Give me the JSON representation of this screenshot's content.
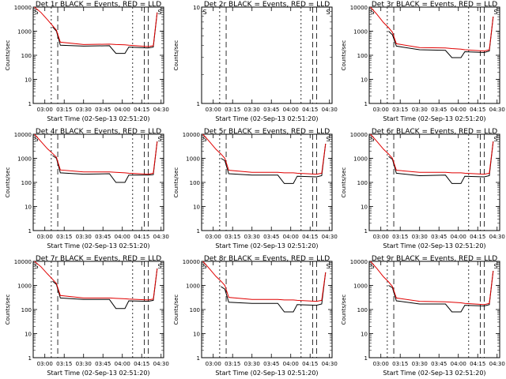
{
  "chart_data": [
    {
      "type": "line",
      "title": "Det 1r BLACK = Events, RED = LLD",
      "xlabel": "Start Time (02-Sep-13 02:51:20)",
      "ylabel": "Counts/sec",
      "xticks": [
        "03:00",
        "03:15",
        "03:30",
        "03:45",
        "04:00",
        "04:15",
        "04:30"
      ],
      "yticks": [
        "1",
        "10",
        "100",
        "1000",
        "10000"
      ],
      "ylim": [
        1,
        10000
      ],
      "yscale": "log",
      "markers": [
        "S",
        "S"
      ],
      "series_colors": {
        "events": "#000000",
        "lld": "#e00000"
      },
      "series": [
        {
          "name": "BLACK = Events",
          "x": [
            "02:52",
            "02:57",
            "03:02",
            "03:06",
            "03:09",
            "03:12",
            "03:30",
            "03:50",
            "03:55",
            "04:02",
            "04:05",
            "04:20",
            "04:24",
            "04:27"
          ],
          "values": [
            null,
            null,
            null,
            1500,
            1000,
            260,
            240,
            250,
            120,
            120,
            220,
            200,
            220,
            6000
          ]
        },
        {
          "name": "RED = LLD",
          "x": [
            "02:52",
            "02:57",
            "03:02",
            "03:06",
            "03:09",
            "03:12",
            "03:30",
            "03:50",
            "03:55",
            "04:02",
            "04:05",
            "04:20",
            "04:24",
            "04:27"
          ],
          "values": [
            12000,
            6000,
            3000,
            1700,
            1100,
            350,
            280,
            290,
            280,
            270,
            260,
            230,
            250,
            6000
          ]
        }
      ]
    },
    {
      "type": "line",
      "title": "Det 2r BLACK = Events, RED = LLD",
      "xlabel": "Start Time (02-Sep-13 02:51:20)",
      "ylabel": "Counts/sec",
      "xticks": [
        "03:00",
        "03:15",
        "03:30",
        "03:45",
        "04:00",
        "04:15",
        "04:30"
      ],
      "yticks": [
        "1",
        "10"
      ],
      "ylim": [
        1,
        10
      ],
      "yscale": "log",
      "markers": [
        "S",
        "S"
      ],
      "series_colors": {
        "events": "#000000",
        "lld": "#e00000"
      },
      "series": []
    },
    {
      "type": "line",
      "title": "Det 3r BLACK = Events, RED = LLD",
      "xlabel": "Start Time (02-Sep-13 02:51:20)",
      "ylabel": "Counts/sec",
      "xticks": [
        "03:00",
        "03:15",
        "03:30",
        "03:45",
        "04:00",
        "04:15",
        "04:30"
      ],
      "yticks": [
        "1",
        "10",
        "100",
        "1000",
        "10000"
      ],
      "ylim": [
        1,
        10000
      ],
      "yscale": "log",
      "markers": [
        "S",
        "S"
      ],
      "series_colors": {
        "events": "#000000",
        "lld": "#e00000"
      },
      "series": [
        {
          "name": "BLACK = Events",
          "x": [
            "02:52",
            "02:57",
            "03:02",
            "03:06",
            "03:09",
            "03:12",
            "03:30",
            "03:50",
            "03:55",
            "04:02",
            "04:05",
            "04:20",
            "04:24",
            "04:27"
          ],
          "values": [
            null,
            null,
            null,
            1000,
            700,
            240,
            170,
            160,
            80,
            80,
            140,
            130,
            150,
            4000
          ]
        },
        {
          "name": "RED = LLD",
          "x": [
            "02:52",
            "02:57",
            "03:02",
            "03:06",
            "03:09",
            "03:12",
            "03:30",
            "03:50",
            "03:55",
            "04:02",
            "04:05",
            "04:20",
            "04:24",
            "04:27"
          ],
          "values": [
            12000,
            5000,
            2300,
            1400,
            900,
            300,
            210,
            200,
            190,
            180,
            170,
            150,
            170,
            4000
          ]
        }
      ]
    },
    {
      "type": "line",
      "title": "Det 4r BLACK = Events, RED = LLD",
      "xlabel": "Start Time (02-Sep-13 02:51:20)",
      "ylabel": "Counts/sec",
      "xticks": [
        "03:00",
        "03:15",
        "03:30",
        "03:45",
        "04:00",
        "04:15",
        "04:30"
      ],
      "yticks": [
        "1",
        "10",
        "100",
        "1000",
        "10000"
      ],
      "ylim": [
        1,
        10000
      ],
      "yscale": "log",
      "markers": [
        "S",
        "S"
      ],
      "series_colors": {
        "events": "#000000",
        "lld": "#e00000"
      },
      "series": [
        {
          "name": "BLACK = Events",
          "x": [
            "02:52",
            "02:57",
            "03:02",
            "03:06",
            "03:09",
            "03:12",
            "03:30",
            "03:50",
            "03:55",
            "04:02",
            "04:05",
            "04:20",
            "04:24",
            "04:27"
          ],
          "values": [
            null,
            null,
            null,
            1300,
            1000,
            250,
            220,
            230,
            100,
            100,
            200,
            200,
            210,
            5000
          ]
        },
        {
          "name": "RED = LLD",
          "x": [
            "02:52",
            "02:57",
            "03:02",
            "03:06",
            "03:09",
            "03:12",
            "03:30",
            "03:50",
            "03:55",
            "04:02",
            "04:05",
            "04:20",
            "04:24",
            "04:27"
          ],
          "values": [
            12000,
            5000,
            2500,
            1600,
            1100,
            330,
            270,
            270,
            260,
            250,
            240,
            220,
            240,
            5000
          ]
        }
      ]
    },
    {
      "type": "line",
      "title": "Det 5r BLACK = Events, RED = LLD",
      "xlabel": "Start Time (02-Sep-13 02:51:20)",
      "ylabel": "Counts/sec",
      "xticks": [
        "03:00",
        "03:15",
        "03:30",
        "03:45",
        "04:00",
        "04:15",
        "04:30"
      ],
      "yticks": [
        "1",
        "10",
        "100",
        "1000",
        "10000"
      ],
      "ylim": [
        1,
        10000
      ],
      "yscale": "log",
      "markers": [
        "S",
        "S"
      ],
      "series_colors": {
        "events": "#000000",
        "lld": "#e00000"
      },
      "series": [
        {
          "name": "BLACK = Events",
          "x": [
            "02:52",
            "02:57",
            "03:02",
            "03:06",
            "03:09",
            "03:12",
            "03:30",
            "03:50",
            "03:55",
            "04:02",
            "04:05",
            "04:20",
            "04:24",
            "04:27"
          ],
          "values": [
            null,
            null,
            null,
            1000,
            800,
            230,
            200,
            200,
            90,
            90,
            180,
            170,
            190,
            4000
          ]
        },
        {
          "name": "RED = LLD",
          "x": [
            "02:52",
            "02:57",
            "03:02",
            "03:06",
            "03:09",
            "03:12",
            "03:30",
            "03:50",
            "03:55",
            "04:02",
            "04:05",
            "04:20",
            "04:24",
            "04:27"
          ],
          "values": [
            12000,
            5000,
            2400,
            1500,
            1000,
            320,
            260,
            260,
            250,
            250,
            240,
            220,
            240,
            4000
          ]
        }
      ]
    },
    {
      "type": "line",
      "title": "Det 6r BLACK = Events, RED = LLD",
      "xlabel": "Start Time (02-Sep-13 02:51:20)",
      "ylabel": "Counts/sec",
      "xticks": [
        "03:00",
        "03:15",
        "03:30",
        "03:45",
        "04:00",
        "04:15",
        "04:30"
      ],
      "yticks": [
        "1",
        "10",
        "100",
        "1000",
        "10000"
      ],
      "ylim": [
        1,
        10000
      ],
      "yscale": "log",
      "markers": [
        "S",
        "S"
      ],
      "series_colors": {
        "events": "#000000",
        "lld": "#e00000"
      },
      "series": [
        {
          "name": "BLACK = Events",
          "x": [
            "02:52",
            "02:57",
            "03:02",
            "03:06",
            "03:09",
            "03:12",
            "03:30",
            "03:50",
            "03:55",
            "04:02",
            "04:05",
            "04:20",
            "04:24",
            "04:27"
          ],
          "values": [
            null,
            null,
            null,
            1200,
            900,
            240,
            190,
            200,
            90,
            90,
            180,
            170,
            190,
            5000
          ]
        },
        {
          "name": "RED = LLD",
          "x": [
            "02:52",
            "02:57",
            "03:02",
            "03:06",
            "03:09",
            "03:12",
            "03:30",
            "03:50",
            "03:55",
            "04:02",
            "04:05",
            "04:20",
            "04:24",
            "04:27"
          ],
          "values": [
            12000,
            5000,
            2400,
            1500,
            1000,
            320,
            260,
            260,
            250,
            250,
            240,
            220,
            240,
            5000
          ]
        }
      ]
    },
    {
      "type": "line",
      "title": "Det 7r BLACK = Events, RED = LLD",
      "xlabel": "Start Time (02-Sep-13 02:51:20)",
      "ylabel": "Counts/sec",
      "xticks": [
        "03:00",
        "03:15",
        "03:30",
        "03:45",
        "04:00",
        "04:15",
        "04:30"
      ],
      "yticks": [
        "1",
        "10",
        "100",
        "1000",
        "10000"
      ],
      "ylim": [
        1,
        10000
      ],
      "yscale": "log",
      "markers": [
        "S",
        "S"
      ],
      "series_colors": {
        "events": "#000000",
        "lld": "#e00000"
      },
      "series": [
        {
          "name": "BLACK = Events",
          "x": [
            "02:52",
            "02:57",
            "03:02",
            "03:06",
            "03:09",
            "03:12",
            "03:30",
            "03:50",
            "03:55",
            "04:02",
            "04:05",
            "04:20",
            "04:24",
            "04:27"
          ],
          "values": [
            null,
            null,
            null,
            1500,
            1100,
            300,
            260,
            260,
            110,
            110,
            230,
            220,
            240,
            5000
          ]
        },
        {
          "name": "RED = LLD",
          "x": [
            "02:52",
            "02:57",
            "03:02",
            "03:06",
            "03:09",
            "03:12",
            "03:30",
            "03:50",
            "03:55",
            "04:02",
            "04:05",
            "04:20",
            "04:24",
            "04:27"
          ],
          "values": [
            12000,
            6000,
            3000,
            1800,
            1200,
            380,
            300,
            300,
            290,
            280,
            270,
            250,
            270,
            5000
          ]
        }
      ]
    },
    {
      "type": "line",
      "title": "Det 8r BLACK = Events, RED = LLD",
      "xlabel": "Start Time (02-Sep-13 02:51:20)",
      "ylabel": "Counts/sec",
      "xticks": [
        "03:00",
        "03:15",
        "03:30",
        "03:45",
        "04:00",
        "04:15",
        "04:30"
      ],
      "yticks": [
        "1",
        "10",
        "100",
        "1000",
        "10000"
      ],
      "ylim": [
        1,
        10000
      ],
      "yscale": "log",
      "markers": [
        "S",
        "S"
      ],
      "series_colors": {
        "events": "#000000",
        "lld": "#e00000"
      },
      "series": [
        {
          "name": "BLACK = Events",
          "x": [
            "02:52",
            "02:57",
            "03:02",
            "03:06",
            "03:09",
            "03:12",
            "03:30",
            "03:50",
            "03:55",
            "04:02",
            "04:05",
            "04:20",
            "04:24",
            "04:27"
          ],
          "values": [
            null,
            null,
            null,
            900,
            700,
            200,
            180,
            180,
            80,
            80,
            160,
            150,
            170,
            3500
          ]
        },
        {
          "name": "RED = LLD",
          "x": [
            "02:52",
            "02:57",
            "03:02",
            "03:06",
            "03:09",
            "03:12",
            "03:30",
            "03:50",
            "03:55",
            "04:02",
            "04:05",
            "04:20",
            "04:24",
            "04:27"
          ],
          "values": [
            12000,
            5000,
            2400,
            1500,
            1000,
            320,
            260,
            260,
            250,
            250,
            240,
            220,
            240,
            3500
          ]
        }
      ]
    },
    {
      "type": "line",
      "title": "Det 9r BLACK = Events, RED = LLD",
      "xlabel": "Start Time (02-Sep-13 02:51:20)",
      "ylabel": "Counts/sec",
      "xticks": [
        "03:00",
        "03:15",
        "03:30",
        "03:45",
        "04:00",
        "04:15",
        "04:30"
      ],
      "yticks": [
        "1",
        "10",
        "100",
        "1000",
        "10000"
      ],
      "ylim": [
        1,
        10000
      ],
      "yscale": "log",
      "markers": [
        "S",
        "S"
      ],
      "series_colors": {
        "events": "#000000",
        "lld": "#e00000"
      },
      "series": [
        {
          "name": "BLACK = Events",
          "x": [
            "02:52",
            "02:57",
            "03:02",
            "03:06",
            "03:09",
            "03:12",
            "03:30",
            "03:50",
            "03:55",
            "04:02",
            "04:05",
            "04:20",
            "04:24",
            "04:27"
          ],
          "values": [
            null,
            null,
            null,
            1000,
            800,
            230,
            170,
            170,
            80,
            80,
            150,
            140,
            160,
            4000
          ]
        },
        {
          "name": "RED = LLD",
          "x": [
            "02:52",
            "02:57",
            "03:02",
            "03:06",
            "03:09",
            "03:12",
            "03:30",
            "03:50",
            "03:55",
            "04:02",
            "04:05",
            "04:20",
            "04:24",
            "04:27"
          ],
          "values": [
            12000,
            5000,
            2300,
            1400,
            900,
            300,
            220,
            210,
            200,
            190,
            180,
            160,
            180,
            4000
          ]
        }
      ]
    }
  ]
}
